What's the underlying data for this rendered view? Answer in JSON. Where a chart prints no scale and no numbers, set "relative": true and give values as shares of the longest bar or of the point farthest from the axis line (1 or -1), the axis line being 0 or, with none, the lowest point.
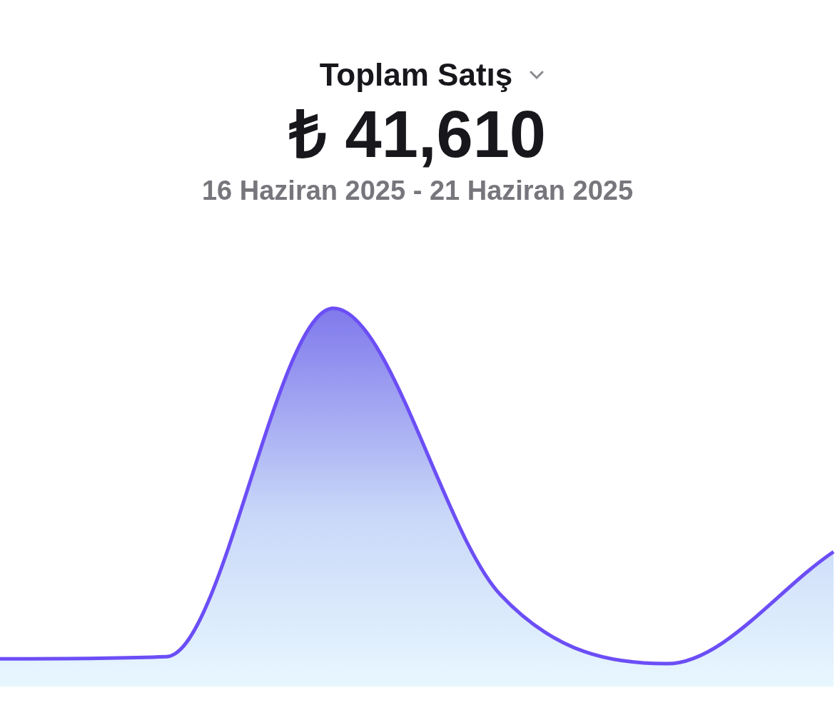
{
  "chart_data": {
    "type": "area",
    "title": "Toplam Satış",
    "subtitle": "₺ 41,610",
    "annotations": [
      "16 Haziran 2025 - 21 Haziran 2025"
    ],
    "categories": [
      null,
      null,
      null,
      null,
      null,
      null
    ],
    "series": [
      {
        "color": "#6c4ef6",
        "values": [
          0.014,
          0.02,
          1,
          0.195,
          0,
          0.315
        ]
      }
    ],
    "relative": true,
    "legend": false
  }
}
